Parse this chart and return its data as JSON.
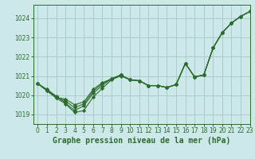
{
  "background_color": "#cce8e8",
  "grid_color": "#aacccc",
  "line_color": "#2d6b2d",
  "xlabel": "Graphe pression niveau de la mer (hPa)",
  "xlabel_fontsize": 7,
  "xlim": [
    -0.5,
    23
  ],
  "ylim": [
    1018.5,
    1024.7
  ],
  "yticks": [
    1019,
    1020,
    1021,
    1022,
    1023,
    1024
  ],
  "xticks": [
    0,
    1,
    2,
    3,
    4,
    5,
    6,
    7,
    8,
    9,
    10,
    11,
    12,
    13,
    14,
    15,
    16,
    17,
    18,
    19,
    20,
    21,
    22,
    23
  ],
  "series": [
    {
      "x": [
        0,
        1,
        2,
        3,
        4,
        5,
        6,
        7,
        8,
        9,
        10,
        11,
        12,
        13,
        14,
        15,
        16,
        17,
        18,
        19,
        20,
        21,
        22,
        23
      ],
      "y": [
        1020.6,
        1020.3,
        1019.95,
        1019.6,
        1019.2,
        1019.45,
        1020.1,
        1020.5,
        1020.85,
        1021.05,
        1020.8,
        1020.75,
        1020.5,
        1020.5,
        1020.4,
        1020.55,
        1021.65,
        1020.95,
        1021.05,
        1022.45,
        1023.25,
        1023.75,
        1024.1,
        1024.35
      ]
    },
    {
      "x": [
        0,
        1,
        2,
        3,
        4,
        5,
        6,
        7,
        8,
        9,
        10,
        11,
        12,
        13,
        14,
        15,
        16,
        17,
        18,
        19,
        20,
        21,
        22,
        23
      ],
      "y": [
        1020.6,
        1020.28,
        1019.9,
        1019.7,
        1019.35,
        1019.55,
        1020.2,
        1020.6,
        1020.85,
        1021.05,
        1020.8,
        1020.75,
        1020.5,
        1020.5,
        1020.4,
        1020.55,
        1021.65,
        1020.95,
        1021.05,
        1022.45,
        1023.25,
        1023.75,
        1024.1,
        1024.35
      ]
    },
    {
      "x": [
        0,
        1,
        2,
        3,
        4,
        5,
        6,
        7,
        8,
        9,
        10,
        11,
        12,
        13,
        14,
        15,
        16,
        17,
        18,
        19,
        20,
        21,
        22,
        23
      ],
      "y": [
        1020.6,
        1020.25,
        1019.88,
        1019.8,
        1019.5,
        1019.65,
        1020.3,
        1020.65,
        1020.85,
        1021.05,
        1020.8,
        1020.75,
        1020.5,
        1020.5,
        1020.4,
        1020.55,
        1021.65,
        1020.95,
        1021.05,
        1022.45,
        1023.25,
        1023.75,
        1024.1,
        1024.35
      ]
    },
    {
      "x": [
        0,
        1,
        2,
        3,
        4,
        5,
        6,
        7,
        8,
        9,
        10,
        11,
        12,
        13,
        14,
        15,
        16,
        17,
        18,
        19,
        20,
        21,
        22,
        23
      ],
      "y": [
        1020.6,
        1020.22,
        1019.85,
        1019.55,
        1019.1,
        1019.2,
        1019.9,
        1020.35,
        1020.8,
        1021.0,
        1020.8,
        1020.75,
        1020.5,
        1020.5,
        1020.4,
        1020.55,
        1021.65,
        1020.95,
        1021.05,
        1022.45,
        1023.25,
        1023.75,
        1024.1,
        1024.35
      ]
    }
  ]
}
